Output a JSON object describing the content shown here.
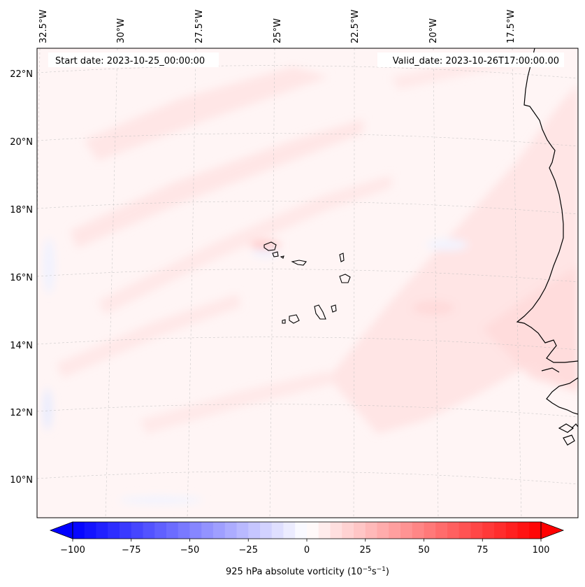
{
  "map": {
    "start_date": "Start date: 2023-10-25_00:00:00",
    "valid_date": "Valid_date: 2023-10-26T17:00:00.00",
    "lon_labels": [
      "32.5°W",
      "30°W",
      "27.5°W",
      "25°W",
      "22.5°W",
      "20°W",
      "17.5°W"
    ],
    "lat_labels": [
      "22°N",
      "20°N",
      "18°N",
      "16°N",
      "14°N",
      "12°N",
      "10°N"
    ],
    "gridlines": true,
    "coastline_color": "#000000",
    "field_colors": {
      "background": "#fff5f5",
      "weak_positive": "#ffe6e6",
      "moderate_positive": "#ffd6d6",
      "weak_negative": "#f2f4ff"
    }
  },
  "colorbar": {
    "label": "925 hPa absolute vorticity (10",
    "label_exp1": "−5",
    "label_mid": "s",
    "label_exp2": "−1",
    "label_end": ")",
    "min": -100,
    "max": 100,
    "levels": 40,
    "ticks": [
      {
        "value": -100,
        "text": "−100"
      },
      {
        "value": -75,
        "text": "−75"
      },
      {
        "value": -50,
        "text": "−50"
      },
      {
        "value": -25,
        "text": "−25"
      },
      {
        "value": 0,
        "text": "0"
      },
      {
        "value": 25,
        "text": "25"
      },
      {
        "value": 50,
        "text": "50"
      },
      {
        "value": 75,
        "text": "75"
      },
      {
        "value": 100,
        "text": "100"
      }
    ],
    "cmap": "bwr",
    "extend": "both"
  }
}
